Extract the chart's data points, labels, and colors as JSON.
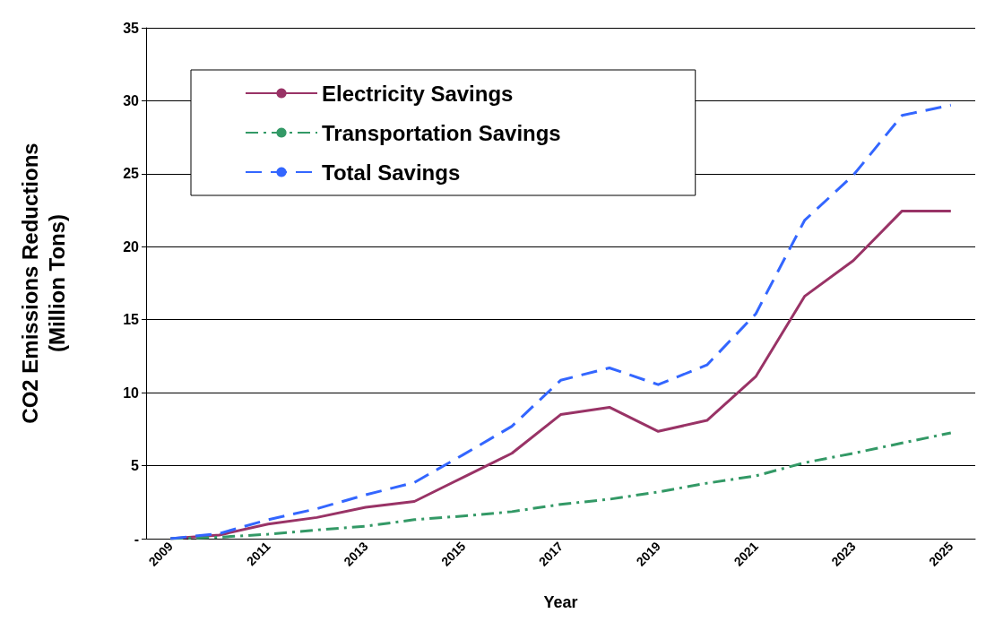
{
  "chart_data": {
    "type": "line",
    "xlabel": "Year",
    "ylabel": "CO2 Emissions Reductions\n(Million Tons)",
    "categories": [
      "2009",
      null,
      "2011",
      null,
      "2013",
      null,
      "2015",
      null,
      "2017",
      null,
      "2019",
      null,
      "2021",
      null,
      "2023",
      null,
      "2025"
    ],
    "series": [
      {
        "name": "Electricity Savings",
        "color": "#993366",
        "line_style": "solid",
        "values": [
          0,
          0.25,
          1.0,
          1.45,
          2.15,
          2.55,
          4.2,
          5.85,
          8.5,
          9.0,
          7.35,
          8.1,
          11.1,
          16.6,
          19.05,
          22.45,
          22.45
        ]
      },
      {
        "name": "Transportation Savings",
        "color": "#339966",
        "line_style": "dashdot",
        "values": [
          0,
          0.1,
          0.3,
          0.6,
          0.85,
          1.3,
          1.55,
          1.85,
          2.35,
          2.7,
          3.2,
          3.8,
          4.3,
          5.2,
          5.85,
          6.55,
          7.25
        ]
      },
      {
        "name": "Total Savings",
        "color": "#3366ff",
        "line_style": "dashed",
        "values": [
          0,
          0.35,
          1.3,
          2.05,
          3.0,
          3.85,
          5.75,
          7.7,
          10.85,
          11.7,
          10.55,
          11.9,
          15.4,
          21.8,
          24.9,
          29.0,
          29.7
        ]
      }
    ],
    "ylim": [
      0,
      35
    ],
    "yticks": [
      {
        "value": 0,
        "label": "-"
      },
      5,
      10,
      15,
      20,
      25,
      30,
      35
    ],
    "grid": "y",
    "legend": "top left",
    "marker": "none"
  }
}
